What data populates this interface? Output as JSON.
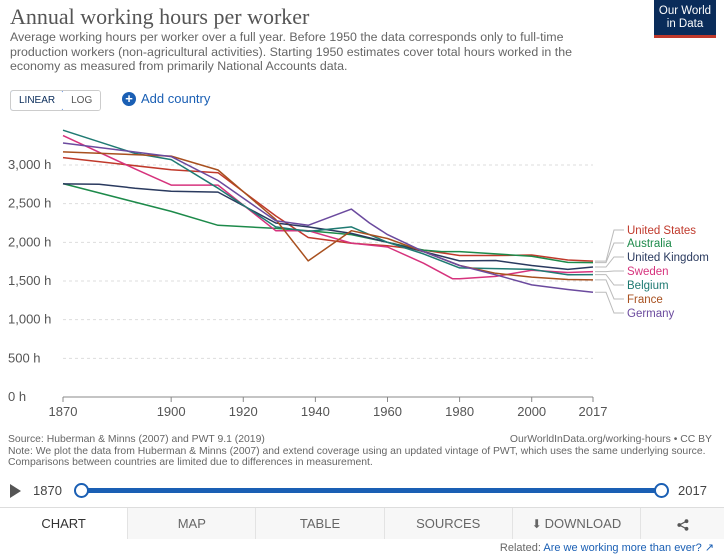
{
  "header": {
    "title": "Annual working hours per worker",
    "subtitle": "Average working hours per worker over a full year. Before 1950 the data corresponds only to full-time production workers (non-agricultural activities). Starting 1950 estimates cover total hours worked in the economy as measured from primarily National Accounts data.",
    "logo_line1": "Our World",
    "logo_line2": "in Data"
  },
  "controls": {
    "linear_label": "LINEAR",
    "log_label": "LOG",
    "add_country_label": "Add country",
    "add_icon": "+"
  },
  "chart_data": {
    "type": "line",
    "xlim": [
      1870,
      2017
    ],
    "ylim": [
      0,
      3000
    ],
    "x_ticks": [
      1870,
      1900,
      1920,
      1940,
      1960,
      1980,
      2000,
      2017
    ],
    "y_ticks": [
      0,
      500,
      1000,
      1500,
      2000,
      2500,
      3000
    ],
    "y_tick_labels": [
      "0 h",
      "500 h",
      "1,000 h",
      "1,500 h",
      "2,000 h",
      "2,500 h",
      "3,000 h"
    ],
    "grid": true,
    "legend": "right",
    "series": [
      {
        "name": "United States",
        "color": "#c0392b",
        "points": [
          [
            1870,
            3096
          ],
          [
            1900,
            2938
          ],
          [
            1913,
            2900
          ],
          [
            1929,
            2342
          ],
          [
            1938,
            2062
          ],
          [
            1950,
            1989
          ],
          [
            1960,
            1957
          ],
          [
            1970,
            1900
          ],
          [
            1980,
            1830
          ],
          [
            1990,
            1830
          ],
          [
            2000,
            1836
          ],
          [
            2010,
            1772
          ],
          [
            2017,
            1757
          ]
        ]
      },
      {
        "name": "Australia",
        "color": "#1d8a4a",
        "points": [
          [
            1870,
            2760
          ],
          [
            1900,
            2400
          ],
          [
            1913,
            2220
          ],
          [
            1929,
            2180
          ],
          [
            1938,
            2150
          ],
          [
            1950,
            2100
          ],
          [
            1960,
            2000
          ],
          [
            1970,
            1900
          ],
          [
            1975,
            1880
          ],
          [
            1980,
            1880
          ],
          [
            1990,
            1850
          ],
          [
            2000,
            1820
          ],
          [
            2010,
            1740
          ],
          [
            2017,
            1738
          ]
        ]
      },
      {
        "name": "United Kingdom",
        "color": "#2a3a5f",
        "points": [
          [
            1870,
            2755
          ],
          [
            1880,
            2750
          ],
          [
            1890,
            2700
          ],
          [
            1900,
            2660
          ],
          [
            1913,
            2650
          ],
          [
            1929,
            2250
          ],
          [
            1938,
            2200
          ],
          [
            1950,
            2115
          ],
          [
            1960,
            2000
          ],
          [
            1970,
            1880
          ],
          [
            1980,
            1760
          ],
          [
            1990,
            1765
          ],
          [
            2000,
            1700
          ],
          [
            2010,
            1650
          ],
          [
            2017,
            1681
          ]
        ]
      },
      {
        "name": "Sweden",
        "color": "#d6337d",
        "points": [
          [
            1870,
            3380
          ],
          [
            1890,
            2950
          ],
          [
            1900,
            2740
          ],
          [
            1913,
            2740
          ],
          [
            1929,
            2150
          ],
          [
            1938,
            2150
          ],
          [
            1950,
            1990
          ],
          [
            1960,
            1940
          ],
          [
            1970,
            1730
          ],
          [
            1978,
            1530
          ],
          [
            1980,
            1530
          ],
          [
            1990,
            1560
          ],
          [
            2000,
            1640
          ],
          [
            2010,
            1610
          ],
          [
            2017,
            1621
          ]
        ]
      },
      {
        "name": "Belgium",
        "color": "#1f7a72",
        "points": [
          [
            1870,
            3450
          ],
          [
            1890,
            3150
          ],
          [
            1900,
            3070
          ],
          [
            1913,
            2700
          ],
          [
            1929,
            2200
          ],
          [
            1938,
            2141
          ],
          [
            1950,
            2200
          ],
          [
            1960,
            2000
          ],
          [
            1970,
            1850
          ],
          [
            1980,
            1670
          ],
          [
            1990,
            1660
          ],
          [
            2000,
            1650
          ],
          [
            2010,
            1580
          ],
          [
            2017,
            1583
          ]
        ]
      },
      {
        "name": "France",
        "color": "#a8501f",
        "points": [
          [
            1870,
            3170
          ],
          [
            1900,
            3115
          ],
          [
            1913,
            2935
          ],
          [
            1929,
            2297
          ],
          [
            1938,
            1760
          ],
          [
            1950,
            2150
          ],
          [
            1960,
            2050
          ],
          [
            1970,
            1880
          ],
          [
            1980,
            1700
          ],
          [
            1990,
            1600
          ],
          [
            2000,
            1550
          ],
          [
            2010,
            1520
          ],
          [
            2017,
            1514
          ]
        ]
      },
      {
        "name": "Germany",
        "color": "#6b4a9e",
        "points": [
          [
            1870,
            3284
          ],
          [
            1900,
            3109
          ],
          [
            1913,
            2800
          ],
          [
            1929,
            2279
          ],
          [
            1938,
            2220
          ],
          [
            1950,
            2430
          ],
          [
            1955,
            2250
          ],
          [
            1960,
            2100
          ],
          [
            1970,
            1880
          ],
          [
            1980,
            1700
          ],
          [
            1990,
            1580
          ],
          [
            2000,
            1450
          ],
          [
            2010,
            1390
          ],
          [
            2017,
            1354
          ]
        ]
      }
    ]
  },
  "footer": {
    "source": "Source: Huberman & Minns (2007) and PWT 9.1 (2019)",
    "license": "OurWorldInData.org/working-hours • CC BY",
    "note": "Note: We plot the data from Huberman & Minns (2007) and extend coverage using an updated vintage of PWT, which uses the same underlying source. Comparisons between countries are limited due to differences in measurement."
  },
  "timeline": {
    "start": "1870",
    "end": "2017"
  },
  "tabs": {
    "chart": "CHART",
    "map": "MAP",
    "table": "TABLE",
    "sources": "SOURCES",
    "download": "DOWNLOAD",
    "share_icon": "share-icon",
    "download_icon": "download-icon"
  },
  "related": {
    "prefix": "Related:",
    "link": "Are we working more than ever?"
  }
}
